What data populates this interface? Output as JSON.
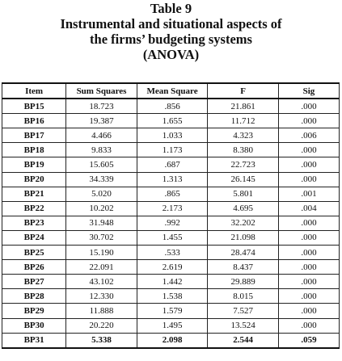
{
  "caption": {
    "table_number": "Table 9",
    "title_line1": "Instrumental and situational aspects of",
    "title_line2": "the firms’ budgeting systems",
    "title_line3": "(ANOVA)"
  },
  "table": {
    "headers": [
      "Item",
      "Sum Squares",
      "Mean Square",
      "F",
      "Sig"
    ],
    "rows": [
      [
        "BP15",
        "18.723",
        ".856",
        "21.861",
        ".000"
      ],
      [
        "BP16",
        "19.387",
        "1.655",
        "11.712",
        ".000"
      ],
      [
        "BP17",
        "4.466",
        "1.033",
        "4.323",
        ".006"
      ],
      [
        "BP18",
        "9.833",
        "1.173",
        "8.380",
        ".000"
      ],
      [
        "BP19",
        "15.605",
        ".687",
        "22.723",
        ".000"
      ],
      [
        "BP20",
        "34.339",
        "1.313",
        "26.145",
        ".000"
      ],
      [
        "BP21",
        "5.020",
        ".865",
        "5.801",
        ".001"
      ],
      [
        "BP22",
        "10.202",
        "2.173",
        "4.695",
        ".004"
      ],
      [
        "BP23",
        "31.948",
        ".992",
        "32.202",
        ".000"
      ],
      [
        "BP24",
        "30.702",
        "1.455",
        "21.098",
        ".000"
      ],
      [
        "BP25",
        "15.190",
        ".533",
        "28.474",
        ".000"
      ],
      [
        "BP26",
        "22.091",
        "2.619",
        "8.437",
        ".000"
      ],
      [
        "BP27",
        "43.102",
        "1.442",
        "29.889",
        ".000"
      ],
      [
        "BP28",
        "12.330",
        "1.538",
        "8.015",
        ".000"
      ],
      [
        "BP29",
        "11.888",
        "1.579",
        "7.527",
        ".000"
      ],
      [
        "BP30",
        "20.220",
        "1.495",
        "13.524",
        ".000"
      ],
      [
        "BP31",
        "5.338",
        "2.098",
        "2.544",
        ".059"
      ]
    ]
  }
}
